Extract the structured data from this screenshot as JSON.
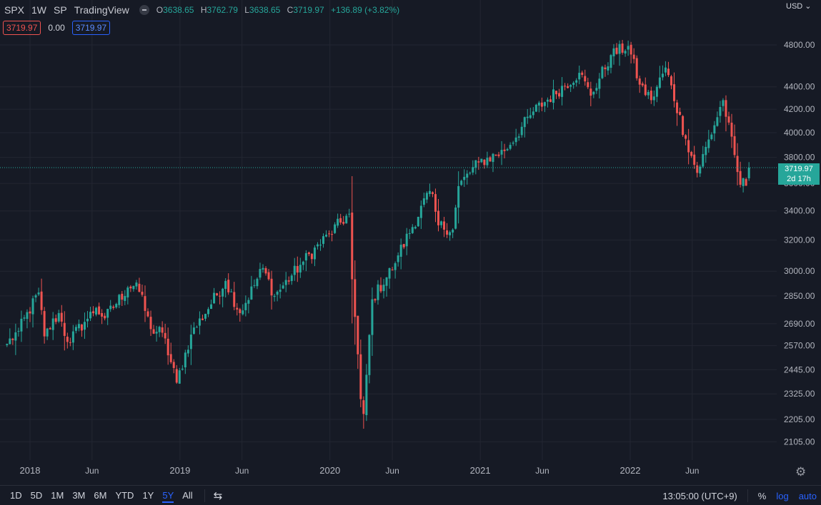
{
  "header": {
    "symbol": "SPX",
    "interval": "1W",
    "exchange": "SP",
    "source": "TradingView",
    "ohlc": {
      "o_label": "O",
      "o": "3638.65",
      "h_label": "H",
      "h": "3762.79",
      "l_label": "L",
      "l": "3638.65",
      "c_label": "C",
      "c": "3719.97",
      "change": "+136.89 (+3.82%)"
    },
    "value_1": "3719.97",
    "value_2": "0.00",
    "value_3": "3719.97"
  },
  "price_axis": {
    "currency": "USD",
    "last_price": "3719.97",
    "countdown": "2d 17h"
  },
  "bottom_bar": {
    "timeframes": [
      "1D",
      "5D",
      "1M",
      "3M",
      "6M",
      "YTD",
      "1Y",
      "5Y",
      "All"
    ],
    "active": "5Y",
    "clock": "13:05:00 (UTC+9)",
    "percent": "%",
    "log": "log",
    "auto": "auto"
  },
  "colors": {
    "up": "#26a69a",
    "down": "#ef5350",
    "background": "#161a25",
    "grid": "#232632",
    "accent": "#2962ff"
  },
  "chart_data": {
    "type": "candlestick",
    "title": "SPX",
    "interval": "weekly",
    "scale": "log",
    "grid": true,
    "ylim": [
      2010,
      4950
    ],
    "y_ticks": [
      2105,
      2205,
      2325,
      2445,
      2570,
      2690,
      2850,
      3000,
      3200,
      3400,
      3600,
      3800,
      4000,
      4200,
      4400,
      4800
    ],
    "y_tick_labels": [
      "2105.00",
      "2205.00",
      "2325.00",
      "2445.00",
      "2570.00",
      "2690.00",
      "2850.00",
      "3000.00",
      "3200.00",
      "3400.00",
      "3600.00",
      "3800.00",
      "4000.00",
      "4200.00",
      "4400.00",
      "4800.00"
    ],
    "x_range": [
      "2017-11-01",
      "2022-10-24"
    ],
    "x_ticks": [
      {
        "date": "2018-01-01",
        "label": "2018",
        "major": true
      },
      {
        "date": "2018-06-01",
        "label": "Jun",
        "major": false
      },
      {
        "date": "2019-01-01",
        "label": "2019",
        "major": true
      },
      {
        "date": "2019-06-01",
        "label": "Jun",
        "major": false
      },
      {
        "date": "2020-01-01",
        "label": "2020",
        "major": true
      },
      {
        "date": "2020-06-01",
        "label": "Jun",
        "major": false
      },
      {
        "date": "2021-01-01",
        "label": "2021",
        "major": true
      },
      {
        "date": "2021-06-01",
        "label": "Jun",
        "major": false
      },
      {
        "date": "2022-01-01",
        "label": "2022",
        "major": true
      },
      {
        "date": "2022-06-01",
        "label": "Jun",
        "major": false
      }
    ],
    "last_price": 3719.97,
    "anchors": [
      {
        "date": "2017-11-06",
        "close": 2580
      },
      {
        "date": "2017-12-04",
        "close": 2650
      },
      {
        "date": "2018-01-22",
        "close": 2870
      },
      {
        "date": "2018-02-05",
        "close": 2620
      },
      {
        "date": "2018-03-12",
        "close": 2750
      },
      {
        "date": "2018-04-02",
        "close": 2590
      },
      {
        "date": "2018-05-14",
        "close": 2700
      },
      {
        "date": "2018-06-11",
        "close": 2780
      },
      {
        "date": "2018-07-02",
        "close": 2720
      },
      {
        "date": "2018-08-27",
        "close": 2900
      },
      {
        "date": "2018-09-17",
        "close": 2930
      },
      {
        "date": "2018-10-22",
        "close": 2660
      },
      {
        "date": "2018-11-19",
        "close": 2640
      },
      {
        "date": "2018-12-24",
        "close": 2380
      },
      {
        "date": "2019-01-28",
        "close": 2630
      },
      {
        "date": "2019-04-22",
        "close": 2940
      },
      {
        "date": "2019-05-27",
        "close": 2750
      },
      {
        "date": "2019-07-22",
        "close": 3020
      },
      {
        "date": "2019-08-19",
        "close": 2850
      },
      {
        "date": "2019-10-28",
        "close": 3060
      },
      {
        "date": "2019-12-30",
        "close": 3240
      },
      {
        "date": "2020-02-17",
        "close": 3380
      },
      {
        "date": "2020-02-24",
        "close": 2950
      },
      {
        "date": "2020-03-16",
        "close": 2300
      },
      {
        "date": "2020-03-23",
        "close": 2230
      },
      {
        "date": "2020-04-13",
        "close": 2830
      },
      {
        "date": "2020-06-08",
        "close": 3050
      },
      {
        "date": "2020-06-15",
        "close": 3100
      },
      {
        "date": "2020-09-01",
        "close": 3550
      },
      {
        "date": "2020-09-21",
        "close": 3300
      },
      {
        "date": "2020-10-26",
        "close": 3270
      },
      {
        "date": "2020-11-09",
        "close": 3580
      },
      {
        "date": "2020-12-28",
        "close": 3760
      },
      {
        "date": "2021-03-01",
        "close": 3850
      },
      {
        "date": "2021-05-10",
        "close": 4180
      },
      {
        "date": "2021-08-30",
        "close": 4530
      },
      {
        "date": "2021-09-27",
        "close": 4320
      },
      {
        "date": "2021-11-15",
        "close": 4700
      },
      {
        "date": "2021-12-27",
        "close": 4790
      },
      {
        "date": "2022-01-24",
        "close": 4420
      },
      {
        "date": "2022-02-21",
        "close": 4280
      },
      {
        "date": "2022-03-28",
        "close": 4580
      },
      {
        "date": "2022-05-16",
        "close": 3950
      },
      {
        "date": "2022-06-13",
        "close": 3680
      },
      {
        "date": "2022-08-15",
        "close": 4280
      },
      {
        "date": "2022-09-26",
        "close": 3590
      },
      {
        "date": "2022-10-03",
        "close": 3640
      },
      {
        "date": "2022-10-10",
        "close": 3583
      },
      {
        "date": "2022-10-17",
        "close": 3719.97
      }
    ]
  }
}
